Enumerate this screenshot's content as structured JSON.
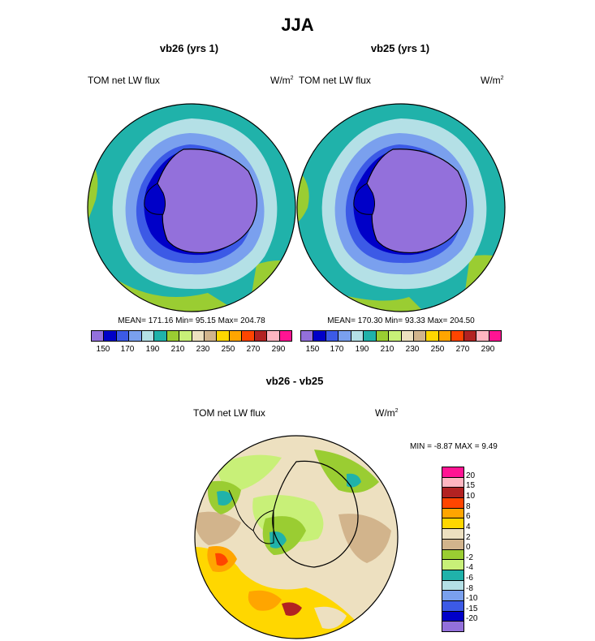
{
  "page": {
    "title": "JJA"
  },
  "panels": [
    {
      "title": "vb26 (yrs 1)",
      "left_label": "TOM net LW flux",
      "units": "W/m",
      "units_sup": "2",
      "stats": "MEAN= 171.16  Min=  95.15  Max= 204.78"
    },
    {
      "title": "vb25 (yrs 1)",
      "left_label": "TOM net LW flux",
      "units": "W/m",
      "units_sup": "2",
      "stats": "MEAN= 170.30  Min=  93.33  Max= 204.50"
    }
  ],
  "diff_panel": {
    "title": "vb26 - vb25",
    "left_label": "TOM net LW flux",
    "units": "W/m",
    "units_sup": "2",
    "minmax": "MIN =  -8.87 MAX =   9.49"
  },
  "colorbar_abs": {
    "colors": [
      "#9370db",
      "#0000c8",
      "#3c5ae6",
      "#7aa0ee",
      "#b4e0e6",
      "#20b2aa",
      "#9acd32",
      "#c8f078",
      "#ede0c0",
      "#d2b48c",
      "#ffd700",
      "#ffa500",
      "#ff4500",
      "#b22222",
      "#ffb6c1",
      "#ff1493"
    ],
    "labels": [
      "150",
      "170",
      "190",
      "210",
      "230",
      "250",
      "270",
      "290"
    ]
  },
  "colorbar_diff": {
    "colors": [
      "#ff1493",
      "#ffb6c1",
      "#b22222",
      "#ff4500",
      "#ffa500",
      "#ffd700",
      "#ede0c0",
      "#d2b48c",
      "#9acd32",
      "#c8f078",
      "#20b2aa",
      "#b4e0e6",
      "#7aa0ee",
      "#3c5ae6",
      "#0000c8",
      "#9370db"
    ],
    "labels": [
      "20",
      "15",
      "10",
      "8",
      "6",
      "4",
      "2",
      "0",
      "-2",
      "-4",
      "-6",
      "-8",
      "-10",
      "-15",
      "-20"
    ]
  }
}
